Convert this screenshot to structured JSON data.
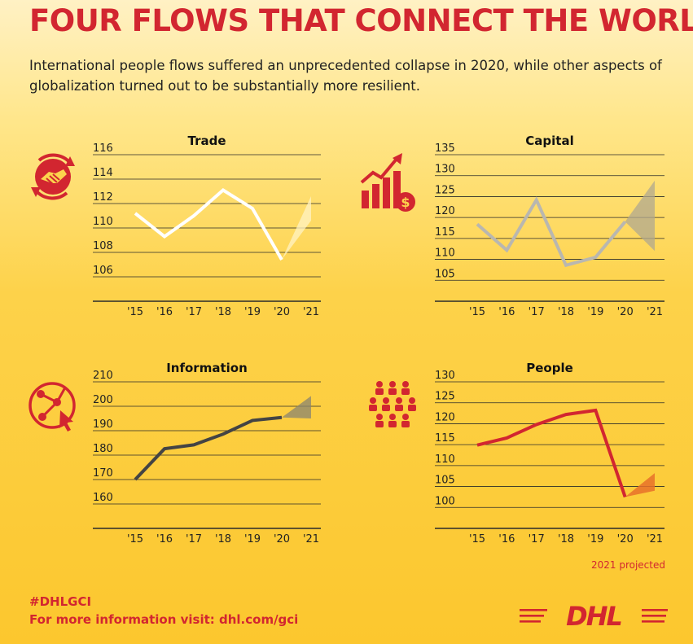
{
  "title": "FOUR FLOWS THAT CONNECT THE WORLD",
  "subtitle": "International people flows suffered an unprecedented collapse in 2020, while other aspects of globalization turned out to be substantially more resilient.",
  "footer": {
    "hashtag": "#DHLGCI",
    "more_info": "For more information visit: dhl.com/gci",
    "projection_note": "2021 projected",
    "logo_text": "DHL"
  },
  "icons": {
    "trade": "handshake-cycle-icon",
    "capital": "growth-chart-dollar-icon",
    "information": "network-globe-cursor-icon",
    "people": "crowd-icon"
  },
  "colors": {
    "brand_red": "#d22630",
    "trade_line": "#ffffff",
    "capital_line": "#b9b7b0",
    "information_line": "#444444",
    "people_line": "#d22630"
  },
  "chart_data": [
    {
      "type": "line",
      "title": "Trade",
      "x": [
        "'15",
        "'16",
        "'17",
        "'18",
        "'19",
        "'20",
        "'21"
      ],
      "series": [
        {
          "values": [
            111.2,
            109.3,
            111.0,
            113.1,
            111.6,
            107.4,
            null
          ]
        }
      ],
      "projection": {
        "from": 107.4,
        "low": 110.6,
        "high": 112.6
      },
      "yticks": [
        106,
        108,
        110,
        112,
        114,
        116
      ],
      "ylim": [
        104,
        116
      ],
      "grid": true
    },
    {
      "type": "line",
      "title": "Capital",
      "x": [
        "'15",
        "'16",
        "'17",
        "'18",
        "'19",
        "'20",
        "'21"
      ],
      "series": [
        {
          "values": [
            118.4,
            112.2,
            124.2,
            108.6,
            110.5,
            119.0,
            null
          ]
        }
      ],
      "projection": {
        "from": 119.0,
        "low": 112.0,
        "high": 128.8
      },
      "yticks": [
        105,
        110,
        115,
        120,
        125,
        130,
        135
      ],
      "ylim": [
        100,
        135
      ],
      "grid": true
    },
    {
      "type": "line",
      "title": "Information",
      "x": [
        "'15",
        "'16",
        "'17",
        "'18",
        "'19",
        "'20",
        "'21"
      ],
      "series": [
        {
          "values": [
            170.0,
            182.6,
            184.2,
            188.6,
            194.2,
            195.4,
            null
          ]
        }
      ],
      "projection": {
        "from": 195.4,
        "low": 195.0,
        "high": 204.2
      },
      "yticks": [
        160,
        170,
        180,
        190,
        200,
        210
      ],
      "ylim": [
        150,
        210
      ],
      "grid": true
    },
    {
      "type": "line",
      "title": "People",
      "x": [
        "'15",
        "'16",
        "'17",
        "'18",
        "'19",
        "'20",
        "'21"
      ],
      "series": [
        {
          "values": [
            114.9,
            116.6,
            119.8,
            122.2,
            123.2,
            102.5,
            null
          ]
        }
      ],
      "projection": {
        "from": 102.5,
        "low": 104.0,
        "high": 108.2
      },
      "yticks": [
        100,
        105,
        110,
        115,
        120,
        125,
        130
      ],
      "ylim": [
        95,
        130
      ],
      "grid": true
    }
  ]
}
